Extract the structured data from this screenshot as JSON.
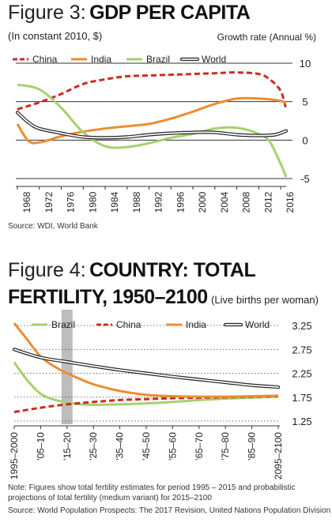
{
  "figures": [
    {
      "label": "Figure 3:",
      "title": "GDP PER CAPITA",
      "subtitle": "(In constant 2010, $)",
      "ylabel": "Growth rate (Annual %)",
      "source": "Source: WDI, World Bank"
    },
    {
      "label": "Figure 4:",
      "title_line1": "COUNTRY: TOTAL",
      "title_line2": "FERTILITY, 1950–2100",
      "title_suffix": "(Live births per woman)",
      "note_line1": "Note: Figures show total fertility estimates for period 1995 – 2015 and probabilistic",
      "note_line2": "projections of total fertility (medium variant) for 2015–2100",
      "source": "Source: World Population Prospects: The 2017 Revision, United Nations Population Division"
    }
  ],
  "colors": {
    "china": "#cc2b22",
    "india": "#ef8c2f",
    "brazil": "#a5d16d",
    "world": "#222222",
    "highlight": "#bdbdbd"
  },
  "chart_data": [
    {
      "type": "line",
      "title": "GDP PER CAPITA",
      "subtitle": "(In constant 2010, $)",
      "xlabel": "",
      "ylabel": "Growth rate (Annual %)",
      "xlim": [
        1968,
        2017
      ],
      "ylim": [
        -5,
        10
      ],
      "xticks": [
        1968,
        1972,
        1976,
        1980,
        1984,
        1988,
        1992,
        1996,
        2000,
        2004,
        2008,
        2012,
        2016
      ],
      "yticks": [
        10,
        5,
        0,
        -5
      ],
      "grid": true,
      "legend": "top",
      "series": [
        {
          "name": "China",
          "color": "#cc2b22",
          "style": "dashed",
          "x": [
            1968,
            1972,
            1976,
            1980,
            1984,
            1988,
            1992,
            1996,
            2000,
            2004,
            2008,
            2012,
            2014,
            2016,
            2017
          ],
          "y": [
            4.0,
            4.9,
            6.0,
            7.3,
            7.9,
            8.3,
            8.4,
            8.5,
            8.6,
            8.7,
            8.8,
            8.6,
            7.9,
            6.4,
            4.0
          ]
        },
        {
          "name": "India",
          "color": "#ef8c2f",
          "style": "solid",
          "x": [
            1968,
            1970,
            1972,
            1976,
            1980,
            1984,
            1988,
            1992,
            1996,
            2000,
            2004,
            2008,
            2012,
            2016,
            2017
          ],
          "y": [
            2.1,
            -0.1,
            -0.3,
            0.5,
            1.1,
            1.5,
            1.8,
            2.1,
            2.8,
            3.7,
            4.7,
            5.4,
            5.4,
            5.1,
            4.8
          ]
        },
        {
          "name": "Brazil",
          "color": "#a5d16d",
          "style": "solid",
          "x": [
            1968,
            1972,
            1976,
            1980,
            1984,
            1988,
            1992,
            1996,
            2000,
            2004,
            2008,
            2012,
            2014,
            2016,
            2017
          ],
          "y": [
            7.2,
            6.6,
            4.2,
            1.0,
            -0.8,
            -0.9,
            -0.4,
            0.3,
            0.8,
            1.5,
            1.6,
            0.8,
            -0.2,
            -3.1,
            -4.8
          ]
        },
        {
          "name": "World",
          "color": "#222222",
          "style": "outline",
          "x": [
            1968,
            1970,
            1972,
            1976,
            1980,
            1984,
            1988,
            1992,
            1996,
            2000,
            2004,
            2008,
            2012,
            2015,
            2017
          ],
          "y": [
            3.6,
            2.3,
            1.5,
            0.9,
            0.4,
            0.3,
            0.4,
            0.7,
            0.9,
            1.0,
            1.0,
            0.7,
            0.6,
            0.7,
            1.2
          ]
        }
      ]
    },
    {
      "type": "line",
      "title": "COUNTRY: TOTAL FERTILITY, 1950–2100",
      "subtitle": "(Live births per woman)",
      "xlabel": "",
      "ylabel": "",
      "categories": [
        "1995–2000",
        "’05–10",
        "’15–20",
        "’25–30",
        "’35–40",
        "’45–50",
        "’55–60",
        "’65–70",
        "’75–80",
        "’85–90",
        "2095–2100"
      ],
      "xlim": [
        0,
        10
      ],
      "ylim": [
        1.25,
        3.25
      ],
      "yticks": [
        3.25,
        2.75,
        2.25,
        1.75,
        1.25
      ],
      "highlight_category": "’15–20",
      "grid": true,
      "legend": "top",
      "series": [
        {
          "name": "Brazil",
          "color": "#a5d16d",
          "style": "solid",
          "x": [
            0,
            0.5,
            1,
            1.5,
            2,
            2.5,
            3,
            4,
            5,
            6,
            7,
            8,
            9,
            10
          ],
          "y": [
            2.48,
            2.1,
            1.82,
            1.7,
            1.64,
            1.6,
            1.59,
            1.6,
            1.62,
            1.65,
            1.69,
            1.72,
            1.74,
            1.76
          ]
        },
        {
          "name": "China",
          "color": "#cc2b22",
          "style": "dashed",
          "x": [
            0,
            1,
            2,
            3,
            4,
            5,
            6,
            7,
            8,
            9,
            10
          ],
          "y": [
            1.44,
            1.53,
            1.6,
            1.65,
            1.69,
            1.71,
            1.73,
            1.74,
            1.75,
            1.76,
            1.77
          ]
        },
        {
          "name": "India",
          "color": "#ef8c2f",
          "style": "solid",
          "x": [
            0,
            0.5,
            1,
            1.5,
            2,
            2.5,
            3,
            4,
            5,
            6,
            7,
            8,
            9,
            10
          ],
          "y": [
            3.3,
            2.95,
            2.6,
            2.4,
            2.25,
            2.13,
            2.02,
            1.88,
            1.8,
            1.77,
            1.76,
            1.76,
            1.77,
            1.78
          ]
        },
        {
          "name": "World",
          "color": "#222222",
          "style": "outline",
          "x": [
            0,
            1,
            2,
            3,
            4,
            5,
            6,
            7,
            8,
            9,
            10
          ],
          "y": [
            2.75,
            2.58,
            2.49,
            2.4,
            2.32,
            2.25,
            2.18,
            2.12,
            2.06,
            2.0,
            1.96
          ]
        }
      ]
    }
  ]
}
